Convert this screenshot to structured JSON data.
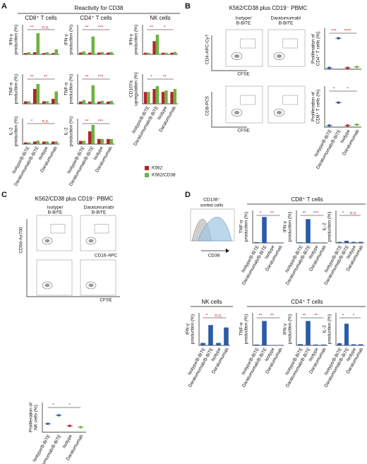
{
  "panel_labels": [
    "A",
    "B",
    "C",
    "D"
  ],
  "categories": [
    "Isotype/B-BiTE",
    "Daratumumab/B-BiTE",
    "Isotype",
    "Daratumumab"
  ],
  "legend": [
    {
      "name": "K562",
      "color": "#b5232a"
    },
    {
      "name": "K562/CD38",
      "color": "#6cb33f"
    }
  ],
  "panel_a": {
    "title": "Reactivity for CD38",
    "charts": [
      {
        "type": "bar",
        "title": "CD8⁺ T cells",
        "ylabel": [
          "IFN-γ",
          "production (%)"
        ],
        "ylim": [
          0,
          7
        ],
        "values": [
          [
            0.3,
            0.5,
            0.3,
            0.3
          ],
          [
            0.5,
            5,
            0.5,
            1.2
          ]
        ],
        "annotations": [
          "**",
          "n.s."
        ]
      },
      {
        "type": "bar",
        "title": "CD4⁺ T cells",
        "ylabel": [
          "IFN-γ",
          "production (%)"
        ],
        "ylim": [
          0,
          5
        ],
        "values": [
          [
            0.3,
            0.3,
            0.3,
            0.3
          ],
          [
            0.5,
            3,
            0.4,
            0.4
          ]
        ],
        "annotations": [
          "**",
          "***"
        ]
      },
      {
        "type": "bar",
        "title": "NK cells",
        "ylabel": [
          "IFN-γ",
          "production (%)"
        ],
        "ylim": [
          0,
          18
        ],
        "values": [
          [
            1,
            8,
            1,
            1
          ],
          [
            1,
            12,
            1,
            1.5
          ]
        ],
        "annotations": [
          "**",
          "*"
        ]
      },
      {
        "type": "bar",
        "ylabel": [
          "TNF-α",
          "production (%)"
        ],
        "ylim": [
          0,
          6
        ],
        "values": [
          [
            0.5,
            3,
            0.5,
            1
          ],
          [
            0.5,
            4,
            0.5,
            2.5
          ]
        ],
        "annotations": [
          "**",
          "**"
        ]
      },
      {
        "type": "bar",
        "ylabel": [
          "TNF-α",
          "production (%)"
        ],
        "ylim": [
          0,
          4
        ],
        "values": [
          [
            0.3,
            0.3,
            0.3,
            0.3
          ],
          [
            0.5,
            2.5,
            0.4,
            0.4
          ]
        ],
        "annotations": [
          "**",
          "***"
        ]
      },
      {
        "type": "bar",
        "ylabel": [
          "CD107a",
          "upregulation (%)"
        ],
        "ylim": [
          0,
          10
        ],
        "values": [
          [
            4,
            5,
            4,
            4
          ],
          [
            4,
            6,
            4.5,
            5
          ]
        ],
        "annotations": [
          "*",
          "**"
        ]
      },
      {
        "type": "bar",
        "ylabel": [
          "IL-2",
          "production (%)"
        ],
        "ylim": [
          0,
          3
        ],
        "values": [
          [
            0.2,
            0.3,
            0.3,
            0.3
          ],
          [
            0.2,
            0.4,
            0.3,
            0.3
          ]
        ],
        "annotations": [
          "*",
          "n.s."
        ]
      },
      {
        "type": "bar",
        "ylabel": [
          "IL-2",
          "production (%)"
        ],
        "ylim": [
          0,
          4
        ],
        "values": [
          [
            0.5,
            2,
            0.8,
            0.8
          ],
          [
            0.5,
            3,
            0.8,
            0.8
          ]
        ],
        "annotations": [
          "**",
          "***"
        ]
      }
    ]
  },
  "panel_b": {
    "title": "K562/CD38 plus CD19⁻ PBMC",
    "columns": [
      [
        "Isotype/",
        "B-BiTE"
      ],
      [
        "Daratumumab/",
        "B-BiTE"
      ]
    ],
    "axes": [
      "CD4-APC-Cy7",
      "CFSE",
      "CD8-PC5",
      "CFSE"
    ],
    "charts": [
      {
        "type": "dot",
        "ylabel": [
          "Proliferation of",
          "CD4⁺ T cells (%)"
        ],
        "ylim": [
          0,
          90
        ],
        "colors": [
          "#2b5ba8",
          "#2b5ba8",
          "#b5232a",
          "#6cb33f"
        ],
        "values": [
          3,
          68,
          3,
          5
        ],
        "annotations": [
          "***",
          "****"
        ]
      },
      {
        "type": "dot",
        "ylabel": [
          "Proliferation of",
          "CD8⁺ T cells (%)"
        ],
        "ylim": [
          0,
          50
        ],
        "colors": [
          "#2b5ba8",
          "#2b5ba8",
          "#b5232a",
          "#6cb33f"
        ],
        "values": [
          2,
          30,
          2,
          3
        ],
        "annotations": [
          "*",
          "*"
        ]
      }
    ]
  },
  "panel_c": {
    "title": "K562/CD38 plus CD19⁻ PBMC",
    "columns": [
      [
        "Isotype/",
        "B-BiTE"
      ],
      [
        "Daratumumab/",
        "B-BiTE"
      ]
    ],
    "axes": [
      "CD56-Ax700",
      "CD16-APC",
      "CFSE"
    ],
    "charts": [
      {
        "type": "dot",
        "ylabel": [
          "Proliferation of",
          "NK cells (%)"
        ],
        "ylim": [
          0,
          70
        ],
        "colors": [
          "#2b5ba8",
          "#2b5ba8",
          "#b5232a",
          "#6cb33f"
        ],
        "values": [
          20,
          40,
          15,
          12
        ],
        "annotations": [
          "*",
          "*"
        ]
      }
    ]
  },
  "panel_d": {
    "histogram": {
      "title": [
        "CD138⁺",
        "sorted cells"
      ],
      "xlabel": "CD38"
    },
    "groups": [
      "CD8⁺ T cells",
      "NK cells",
      "CD4⁺ T cells"
    ],
    "charts": [
      {
        "type": "bar",
        "color": "#2b5ba8",
        "ylabel": [
          "TNF-α",
          "production (%)"
        ],
        "ylim": [
          0,
          20
        ],
        "values": [
          0.5,
          16,
          0.2,
          0.2
        ],
        "annotations": [
          "*",
          "**"
        ]
      },
      {
        "type": "bar",
        "color": "#2b5ba8",
        "ylabel": [
          "IFN-γ",
          "production (%)"
        ],
        "ylim": [
          0,
          15
        ],
        "values": [
          0.3,
          11,
          0.2,
          0.2
        ],
        "annotations": [
          "**",
          "***"
        ]
      },
      {
        "type": "bar",
        "color": "#2b5ba8",
        "ylabel": [
          "IL-2",
          "production (%)"
        ],
        "ylim": [
          0,
          3
        ],
        "values": [
          0.1,
          0.2,
          0.1,
          0.1
        ],
        "annotations": [
          "*",
          "n.s."
        ]
      },
      {
        "type": "bar",
        "color": "#2b5ba8",
        "ylabel": [
          "IFN-γ",
          "production (%)"
        ],
        "ylim": [
          0,
          4
        ],
        "values": [
          0.3,
          2.5,
          0.3,
          2.2
        ],
        "annotations": [
          "*",
          "n.s."
        ]
      },
      {
        "type": "bar",
        "color": "#2b5ba8",
        "ylabel": [
          "TNF-α",
          "production (%)"
        ],
        "ylim": [
          0,
          20
        ],
        "values": [
          0.5,
          15,
          0.2,
          0.2
        ],
        "annotations": [
          "**",
          "**"
        ]
      },
      {
        "type": "bar",
        "color": "#2b5ba8",
        "ylabel": [
          "IFN-γ",
          "production (%)"
        ],
        "ylim": [
          0,
          8
        ],
        "values": [
          0.3,
          6,
          0.2,
          0.2
        ],
        "annotations": [
          "**",
          "**"
        ]
      },
      {
        "type": "bar",
        "color": "#2b5ba8",
        "ylabel": [
          "IL-2",
          "production (%)"
        ],
        "ylim": [
          0,
          3
        ],
        "values": [
          0.2,
          2,
          0.1,
          0.1
        ],
        "annotations": [
          "*",
          "*"
        ]
      }
    ]
  }
}
